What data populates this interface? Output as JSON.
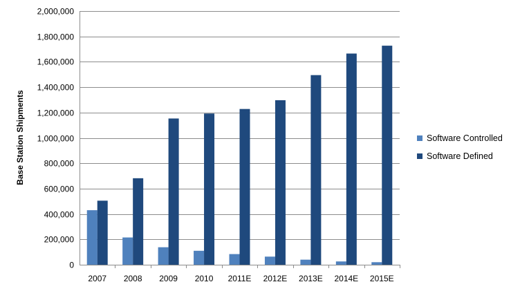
{
  "chart_data": {
    "type": "bar",
    "title": "",
    "xlabel": "",
    "ylabel": "Base Station Shipments",
    "ylim": [
      0,
      2000000
    ],
    "ytick_step": 200000,
    "yticks": [
      "0",
      "200,000",
      "400,000",
      "600,000",
      "800,000",
      "1,000,000",
      "1,200,000",
      "1,400,000",
      "1,600,000",
      "1,800,000",
      "2,000,000"
    ],
    "grid": "horizontal",
    "legend_position": "right",
    "categories": [
      "2007",
      "2008",
      "2009",
      "2010",
      "2011E",
      "2012E",
      "2013E",
      "2014E",
      "2015E"
    ],
    "series": [
      {
        "name": "Software Controlled",
        "color": "#4F81BD",
        "values": [
          430000,
          215000,
          138000,
          110000,
          84000,
          64000,
          40000,
          26000,
          20000
        ]
      },
      {
        "name": "Software Defined",
        "color": "#1F497D",
        "values": [
          505000,
          682000,
          1153000,
          1192000,
          1228000,
          1297000,
          1495000,
          1665000,
          1727000
        ]
      }
    ]
  }
}
